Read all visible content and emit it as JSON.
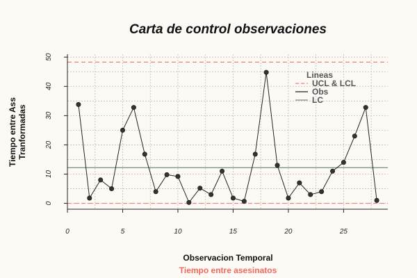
{
  "chart_data": {
    "type": "line",
    "title": "Carta de control observaciones",
    "xlabel": "Observacion Temporal",
    "ylabel_line1": "Tiempo entre Ass",
    "ylabel_line2": "Tranformadas",
    "caption": "Tiempo entre asesinatos",
    "xlim": [
      0,
      29
    ],
    "ylim": [
      -2,
      51
    ],
    "xticks": [
      0,
      5,
      10,
      15,
      20,
      25
    ],
    "yticks": [
      0,
      10,
      20,
      30,
      40,
      50
    ],
    "grid": true,
    "legend": {
      "title": "Lineas",
      "placement": "top-right",
      "entries": [
        {
          "label": "UCL & LCL",
          "style": "dashed",
          "color": "#e8837a"
        },
        {
          "label": "Obs",
          "style": "solid",
          "color": "#222222"
        },
        {
          "label": "LC",
          "style": "solid",
          "color": "#6f8f80"
        }
      ]
    },
    "series": [
      {
        "name": "Obs",
        "x": [
          1,
          2,
          3,
          4,
          5,
          6,
          7,
          8,
          9,
          10,
          11,
          12,
          13,
          14,
          15,
          16,
          17,
          18,
          19,
          20,
          21,
          22,
          23,
          24,
          25,
          26,
          27,
          28
        ],
        "values": [
          33.8,
          1.8,
          8.0,
          5.0,
          25.0,
          32.8,
          16.8,
          4.0,
          9.8,
          9.2,
          0.3,
          5.2,
          3.0,
          11.0,
          1.8,
          0.7,
          16.8,
          44.8,
          13.0,
          1.8,
          7.0,
          3.0,
          4.0,
          11.0,
          14.0,
          23.0,
          32.8,
          1.0
        ]
      }
    ],
    "ucl": 48.3,
    "lcl": 0.0,
    "lc": 12.2,
    "colors": {
      "obs_line": "#222222",
      "obs_point": "#333333",
      "limits": "#e8837a",
      "center": "#6f8f80",
      "grid": "#bbbbbb",
      "caption": "#f06a5e"
    }
  }
}
